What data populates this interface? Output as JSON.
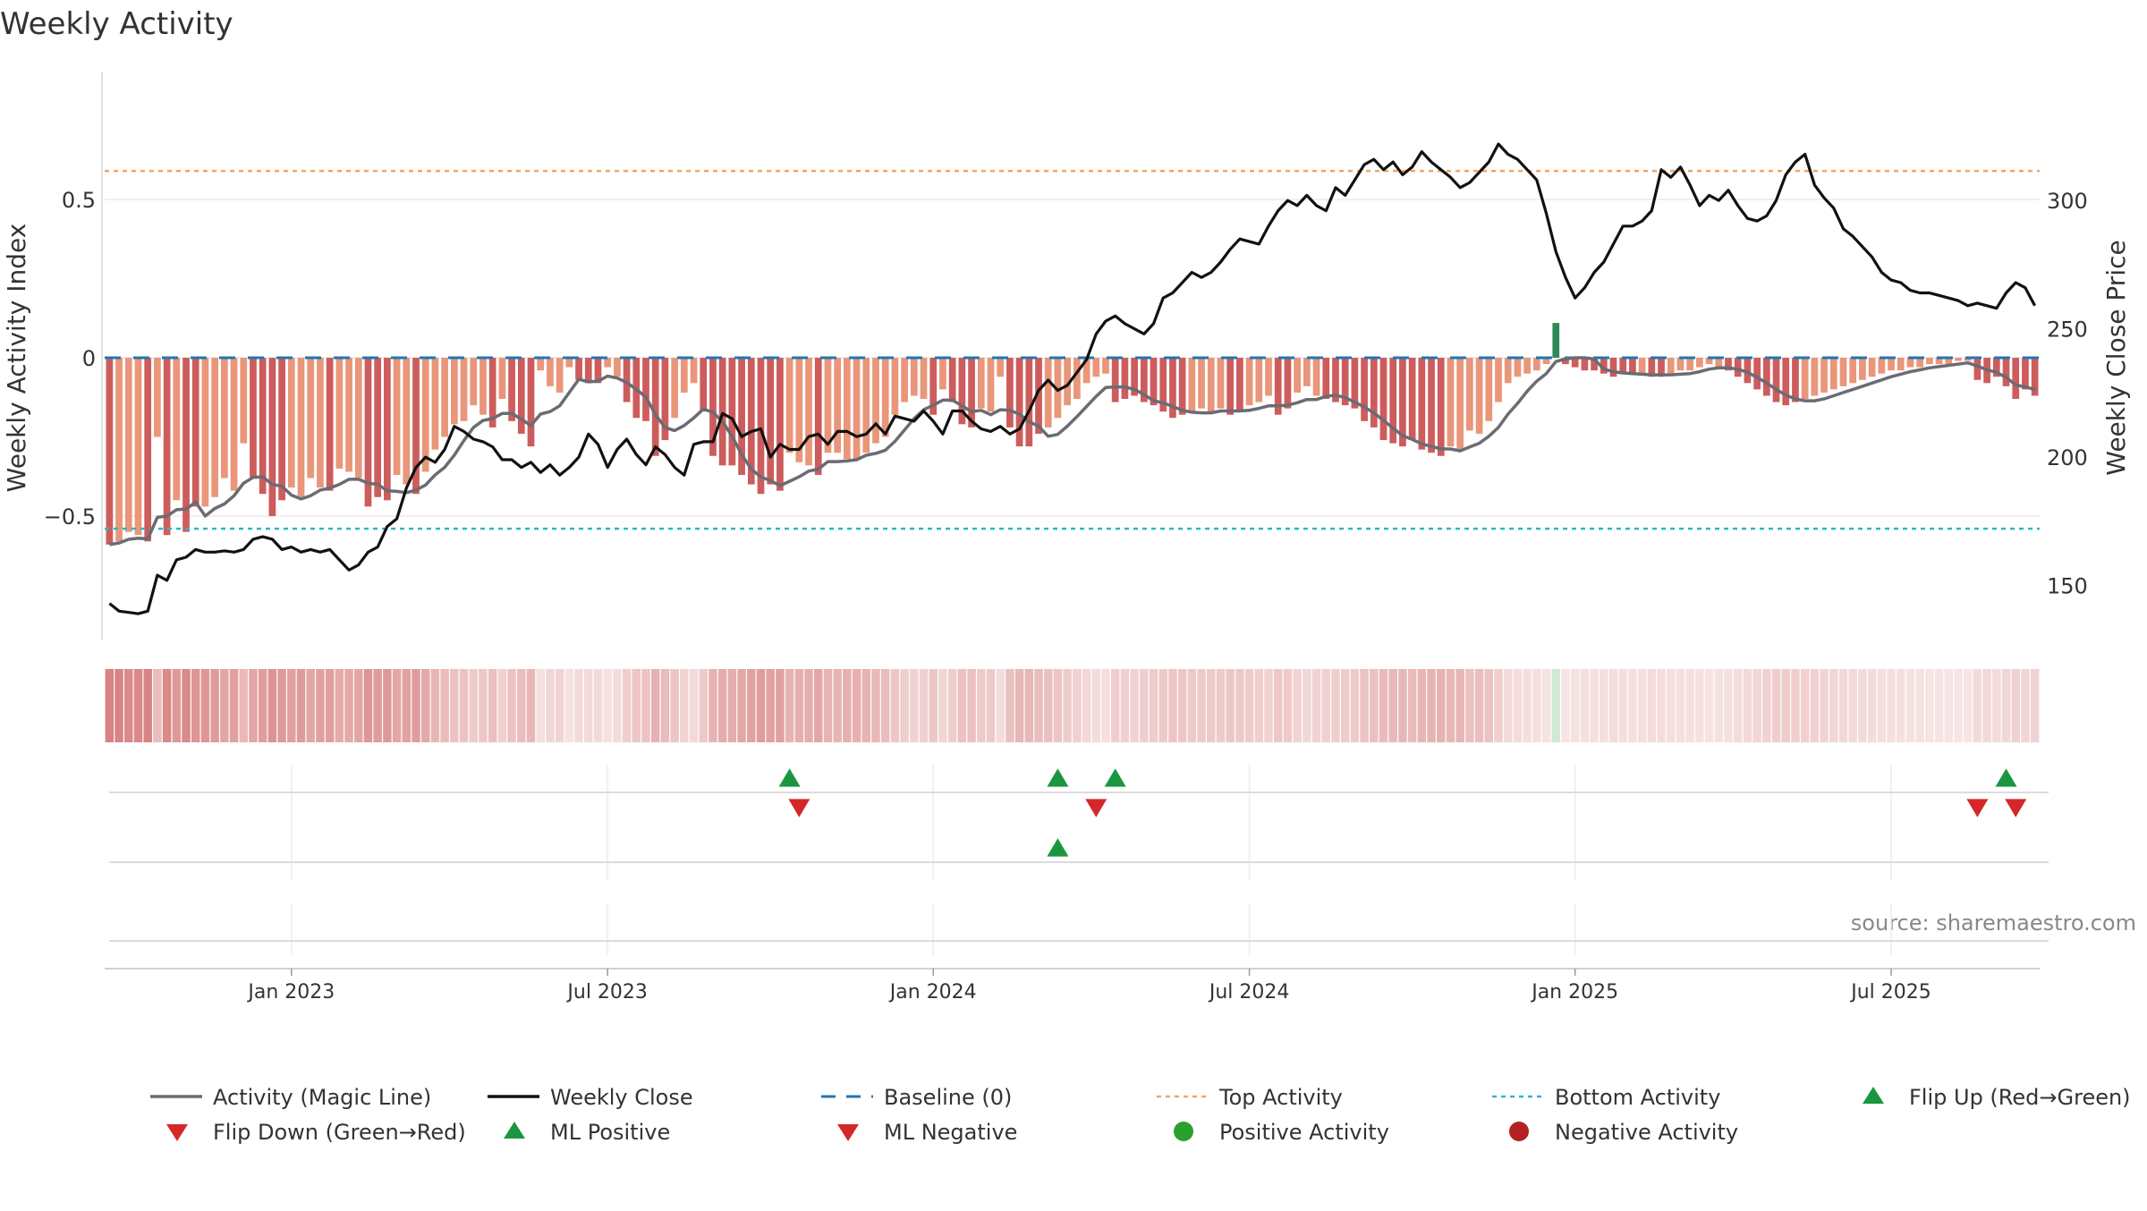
{
  "chart_data": {
    "type": "bar",
    "title": "Weekly Activity",
    "ylabel_left": "Weekly Activity Index",
    "ylabel_right": "Weekly Close Price",
    "source": "source: sharemaestro.com",
    "left_ylim": [
      -0.9,
      0.9
    ],
    "right_ylim": [
      130,
      345
    ],
    "left_ticks": [
      {
        "v": 0.5,
        "label": "0.5"
      },
      {
        "v": 0,
        "label": "0"
      },
      {
        "v": -0.5,
        "label": "−0.5"
      }
    ],
    "right_ticks": [
      {
        "v": 300,
        "label": "300"
      },
      {
        "v": 250,
        "label": "250"
      },
      {
        "v": 200,
        "label": "200"
      },
      {
        "v": 150,
        "label": "150"
      }
    ],
    "x_ticks": [
      {
        "week": 19,
        "label": "Jan 2023"
      },
      {
        "week": 52,
        "label": "Jul 2023"
      },
      {
        "week": 86,
        "label": "Jan 2024"
      },
      {
        "week": 119,
        "label": "Jul 2024"
      },
      {
        "week": 153,
        "label": "Jan 2025"
      },
      {
        "week": 186,
        "label": "Jul 2025"
      }
    ],
    "weeks": 202,
    "top_activity": 0.59,
    "bottom_activity": -0.54,
    "activity": [
      -0.59,
      -0.58,
      -0.55,
      -0.56,
      -0.58,
      -0.25,
      -0.56,
      -0.45,
      -0.55,
      -0.47,
      -0.47,
      -0.44,
      -0.38,
      -0.42,
      -0.27,
      -0.38,
      -0.43,
      -0.5,
      -0.45,
      -0.41,
      -0.44,
      -0.38,
      -0.41,
      -0.42,
      -0.35,
      -0.36,
      -0.38,
      -0.47,
      -0.44,
      -0.45,
      -0.37,
      -0.4,
      -0.43,
      -0.36,
      -0.29,
      -0.25,
      -0.21,
      -0.2,
      -0.15,
      -0.18,
      -0.22,
      -0.13,
      -0.2,
      -0.24,
      -0.28,
      -0.04,
      -0.09,
      -0.11,
      -0.03,
      -0.07,
      -0.08,
      -0.08,
      -0.03,
      -0.06,
      -0.14,
      -0.19,
      -0.2,
      -0.31,
      -0.26,
      -0.19,
      -0.11,
      -0.08,
      -0.17,
      -0.31,
      -0.34,
      -0.34,
      -0.37,
      -0.4,
      -0.43,
      -0.4,
      -0.42,
      -0.3,
      -0.33,
      -0.34,
      -0.37,
      -0.3,
      -0.3,
      -0.32,
      -0.32,
      -0.3,
      -0.27,
      -0.25,
      -0.18,
      -0.14,
      -0.12,
      -0.13,
      -0.18,
      -0.1,
      -0.14,
      -0.21,
      -0.22,
      -0.16,
      -0.17,
      -0.06,
      -0.22,
      -0.28,
      -0.28,
      -0.24,
      -0.22,
      -0.19,
      -0.15,
      -0.13,
      -0.08,
      -0.06,
      -0.05,
      -0.14,
      -0.13,
      -0.12,
      -0.14,
      -0.15,
      -0.17,
      -0.19,
      -0.18,
      -0.17,
      -0.16,
      -0.17,
      -0.16,
      -0.18,
      -0.17,
      -0.15,
      -0.14,
      -0.12,
      -0.18,
      -0.16,
      -0.11,
      -0.09,
      -0.12,
      -0.13,
      -0.14,
      -0.15,
      -0.16,
      -0.2,
      -0.22,
      -0.26,
      -0.27,
      -0.28,
      -0.26,
      -0.29,
      -0.3,
      -0.31,
      -0.28,
      -0.29,
      -0.23,
      -0.24,
      -0.2,
      -0.14,
      -0.08,
      -0.06,
      -0.05,
      -0.04,
      -0.02,
      0.11,
      -0.02,
      -0.03,
      -0.04,
      -0.04,
      -0.05,
      -0.06,
      -0.05,
      -0.05,
      -0.05,
      -0.06,
      -0.06,
      -0.05,
      -0.04,
      -0.04,
      -0.03,
      -0.02,
      -0.03,
      -0.04,
      -0.06,
      -0.08,
      -0.1,
      -0.12,
      -0.14,
      -0.15,
      -0.14,
      -0.13,
      -0.12,
      -0.11,
      -0.1,
      -0.09,
      -0.08,
      -0.07,
      -0.06,
      -0.05,
      -0.04,
      -0.04,
      -0.03,
      -0.03,
      -0.02,
      -0.02,
      -0.02,
      -0.01,
      -0.01,
      -0.07,
      -0.08,
      -0.06,
      -0.09,
      -0.13,
      -0.1,
      -0.12
    ],
    "close": [
      143,
      140,
      139.5,
      139,
      140,
      154,
      152,
      160,
      161,
      164,
      163,
      163,
      163.5,
      163,
      164,
      168,
      169,
      168,
      164,
      165,
      163,
      164,
      163,
      164,
      160,
      156,
      158,
      163,
      165,
      173,
      176,
      188,
      196,
      200,
      198,
      203,
      212,
      210,
      207,
      206,
      204,
      199,
      199,
      196,
      198,
      194,
      197,
      193,
      196,
      200,
      209,
      205,
      196,
      203,
      207,
      201,
      197,
      204,
      201,
      196,
      193,
      205,
      206,
      206,
      217,
      215,
      208,
      210,
      211,
      200,
      205,
      203,
      203,
      208,
      209,
      205,
      210,
      210,
      208,
      209,
      213,
      209,
      216,
      215,
      214,
      218,
      214,
      209,
      218,
      218,
      214,
      211,
      210,
      212,
      209,
      211,
      218,
      226,
      230,
      226,
      228,
      233,
      238,
      248,
      253,
      255,
      252,
      250,
      248,
      252,
      262,
      264,
      268,
      272,
      270,
      272,
      276,
      281,
      285,
      284,
      283,
      290,
      296,
      300,
      298,
      302,
      298,
      296,
      305,
      302,
      308,
      314,
      316,
      312,
      315,
      310,
      313,
      319,
      315,
      312,
      309,
      305,
      307,
      311,
      315,
      322,
      318,
      316,
      312,
      308,
      295,
      280,
      270,
      262,
      266,
      272,
      276,
      283,
      290,
      290,
      292,
      296,
      312,
      309,
      313,
      306,
      298,
      302,
      300,
      304,
      298,
      293,
      292,
      294,
      300,
      310,
      315,
      318,
      306,
      301,
      297,
      289,
      286,
      282,
      278,
      272,
      269,
      268,
      265,
      264,
      264,
      263,
      262,
      261,
      259,
      260,
      259,
      258,
      264,
      268,
      266,
      259
    ],
    "heat": [],
    "flip_up_weeks": [
      71,
      99,
      105,
      198
    ],
    "flip_down_weeks": [
      72,
      103,
      195,
      199
    ],
    "ml_positive_weeks": [
      99
    ],
    "ml_negative_weeks": [],
    "colors": {
      "pos_strong": "#2e8b57",
      "pos_light": "#85c17e",
      "neg_strong": "#cd5c5c",
      "neg_light": "#e9967a",
      "magic_line": "#6b6b73",
      "close": "#111111",
      "baseline": "#1f77b4",
      "top": "#f4a460",
      "bottom": "#2ab7ca",
      "up_marker": "#1a9641",
      "down_marker": "#d62728",
      "pos_dot": "#2ca02c",
      "neg_dot": "#b22222"
    },
    "legend": [
      {
        "key": "magic",
        "label": "Activity (Magic Line)"
      },
      {
        "key": "close",
        "label": "Weekly Close"
      },
      {
        "key": "baseline",
        "label": "Baseline (0)"
      },
      {
        "key": "top",
        "label": "Top Activity"
      },
      {
        "key": "bottom",
        "label": "Bottom Activity"
      },
      {
        "key": "flipup",
        "label": "Flip Up (Red→Green)"
      },
      {
        "key": "flipdown",
        "label": "Flip Down (Green→Red)"
      },
      {
        "key": "mlpos",
        "label": "ML Positive"
      },
      {
        "key": "mlneg",
        "label": "ML Negative"
      },
      {
        "key": "posdot",
        "label": "Positive Activity"
      },
      {
        "key": "negdot",
        "label": "Negative Activity"
      }
    ]
  }
}
